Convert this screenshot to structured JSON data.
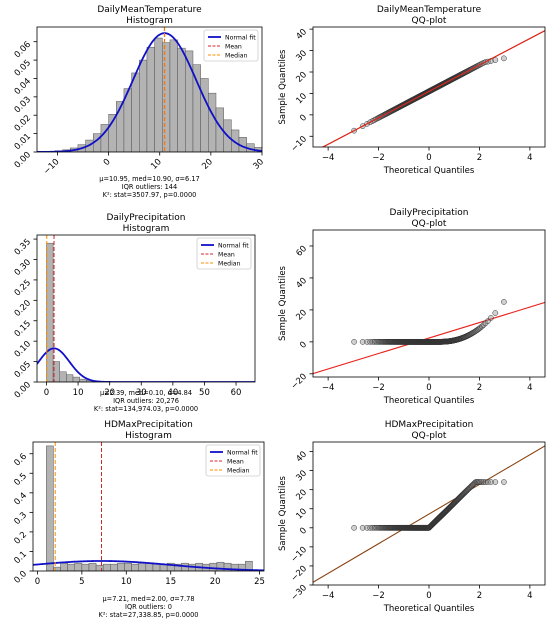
{
  "colors": {
    "bar_fill": "#b3b3b3",
    "bar_stroke": "#555555",
    "normal_fit": "#1010c8",
    "mean": "#d62728",
    "median": "#ff8c00",
    "qq_points_stroke": "#333333",
    "qq_line": "#e8251c",
    "qq_line2": "#8b4513"
  },
  "legend_labels": [
    "Normal fit",
    "Mean",
    "Median"
  ],
  "chart_data": [
    {
      "type": "bar",
      "name": "DailyMeanTemperature",
      "title_line1": "DailyMeanTemperature",
      "title_line2": "Histogram",
      "xlim": [
        -14,
        30
      ],
      "ylim": [
        0,
        0.068
      ],
      "xticks": [
        -10,
        0,
        10,
        20,
        30
      ],
      "yticks": [
        0.0,
        0.01,
        0.02,
        0.03,
        0.04,
        0.05,
        0.06
      ],
      "ytick_labels": [
        "0.00",
        "0.01",
        "0.02",
        "0.03",
        "0.04",
        "0.05",
        "0.06"
      ],
      "bin_start": -12,
      "bin_width": 1.5,
      "values": [
        0.0003,
        0.0007,
        0.0012,
        0.0022,
        0.004,
        0.0065,
        0.01,
        0.015,
        0.0205,
        0.0275,
        0.0345,
        0.043,
        0.05,
        0.057,
        0.062,
        0.0595,
        0.061,
        0.0565,
        0.055,
        0.0475,
        0.04,
        0.032,
        0.024,
        0.0175,
        0.012,
        0.008,
        0.0045,
        0.0025,
        0.0012
      ],
      "fit": {
        "mu": 10.95,
        "sigma": 6.17,
        "scale": 1.0
      },
      "mean": 10.95,
      "median": 10.9,
      "xtick_rotate": true,
      "stats": [
        "μ=10.95, med=10.90, σ=6.17",
        "IQR outliers: 144",
        "K²: stat=3507.97, p=0.0000"
      ]
    },
    {
      "type": "bar",
      "name": "DailyPrecipitation",
      "title_line1": "DailyPrecipitation",
      "title_line2": "Histogram",
      "xlim": [
        -3,
        66
      ],
      "ylim": [
        0,
        0.36
      ],
      "xticks": [
        0,
        10,
        20,
        30,
        40,
        50,
        60
      ],
      "yticks": [
        0.0,
        0.05,
        0.1,
        0.15,
        0.2,
        0.25,
        0.3,
        0.35
      ],
      "ytick_labels": [
        "0.00",
        "0.05",
        "0.10",
        "0.15",
        "0.20",
        "0.25",
        "0.30",
        "0.35"
      ],
      "bin_start": 0,
      "bin_width": 2.1,
      "values": [
        0.34,
        0.05,
        0.025,
        0.018,
        0.012,
        0.007,
        0.004,
        0.002,
        0.001,
        0.0005,
        0.0003,
        0.0002,
        0.0001,
        0.0001,
        0.0001,
        0.0001,
        0.0001,
        0.0001,
        0.0001,
        0.0001,
        0.0001,
        0.0001,
        0.0001,
        0.0001,
        0.0001,
        0.0001,
        0.0001,
        0.0001,
        0.0001,
        0.0001
      ],
      "fit": {
        "mu": 2.39,
        "sigma": 4.84,
        "scale": 1.0
      },
      "mean": 2.39,
      "median": 0.1,
      "xtick_rotate": false,
      "stats": [
        "μ=2.39, med=0.10, σ=4.84",
        "IQR outliers: 20,276",
        "K²: stat=134,974.03, p=0.0000"
      ]
    },
    {
      "type": "bar",
      "name": "HDMaxPrecipitation",
      "title_line1": "HDMaxPrecipitation",
      "title_line2": "Histogram",
      "xlim": [
        -0.5,
        25.5
      ],
      "ylim": [
        0,
        0.66
      ],
      "xticks": [
        0,
        5,
        10,
        15,
        20,
        25
      ],
      "yticks": [
        0.0,
        0.1,
        0.2,
        0.3,
        0.4,
        0.5,
        0.6
      ],
      "ytick_labels": [
        "0.0",
        "0.1",
        "0.2",
        "0.3",
        "0.4",
        "0.5",
        "0.6"
      ],
      "bin_start": 1,
      "bin_width": 0.8,
      "values": [
        0.64,
        0.02,
        0.04,
        0.035,
        0.04,
        0.035,
        0.04,
        0.03,
        0.035,
        0.035,
        0.04,
        0.04,
        0.035,
        0.04,
        0.04,
        0.035,
        0.035,
        0.04,
        0.035,
        0.04,
        0.035,
        0.04,
        0.035,
        0.04,
        0.045,
        0.04,
        0.035,
        0.035,
        0.05
      ],
      "fit": {
        "mu": 7.21,
        "sigma": 7.78,
        "scale": 1.0
      },
      "mean": 7.21,
      "median": 2.0,
      "xtick_rotate": false,
      "stats": [
        "μ=7.21, med=2.00, σ=7.78",
        "IQR outliers: 0",
        "K²: stat=27,338.85, p=0.0000"
      ]
    },
    {
      "type": "scatter",
      "name": "DailyMeanTemperature QQ",
      "title_line1": "DailyMeanTemperature",
      "title_line2": "QQ-plot",
      "xlabel": "Theoretical Quantiles",
      "ylabel": "Sample Quantiles",
      "xlim": [
        -4.6,
        4.6
      ],
      "ylim": [
        -15,
        41
      ],
      "xticks": [
        -4,
        -2,
        0,
        2,
        4
      ],
      "yticks": [
        -10,
        0,
        10,
        20,
        30,
        40
      ],
      "qq_kind": "temp",
      "line": {
        "intercept": 10.95,
        "slope": 6.17
      }
    },
    {
      "type": "scatter",
      "name": "DailyPrecipitation QQ",
      "title_line1": "DailyPrecipitation",
      "title_line2": "QQ-plot",
      "xlabel": "Theoretical Quantiles",
      "ylabel": "Sample Quantiles",
      "xlim": [
        -4.6,
        4.6
      ],
      "ylim": [
        -22,
        70
      ],
      "xticks": [
        -4,
        -2,
        0,
        2,
        4
      ],
      "yticks": [
        -20,
        0,
        20,
        40,
        60
      ],
      "qq_kind": "precip",
      "line": {
        "intercept": 2.39,
        "slope": 4.84
      }
    },
    {
      "type": "scatter",
      "name": "HDMaxPrecipitation QQ",
      "title_line1": "HDMaxPrecipitation",
      "title_line2": "QQ-plot",
      "xlabel": "Theoretical Quantiles",
      "ylabel": "Sample Quantiles",
      "xlim": [
        -4.6,
        4.6
      ],
      "ylim": [
        -30,
        45
      ],
      "xticks": [
        -4,
        -2,
        0,
        2,
        4
      ],
      "yticks": [
        -30,
        -20,
        -10,
        0,
        10,
        20,
        30,
        40
      ],
      "qq_kind": "hdmax",
      "line": {
        "intercept": 7.21,
        "slope": 7.78
      }
    }
  ]
}
